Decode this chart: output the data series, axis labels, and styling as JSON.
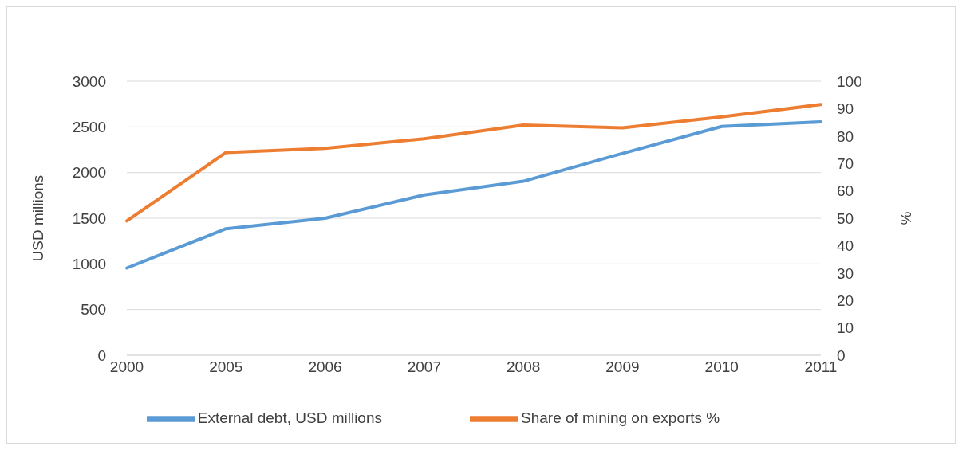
{
  "chart_data": {
    "type": "line",
    "categories": [
      "2000",
      "2005",
      "2006",
      "2007",
      "2008",
      "2009",
      "2010",
      "2011"
    ],
    "ylabel": "USD millions",
    "y2label": "%",
    "series": [
      {
        "name": "External debt, USD millions",
        "color": "#5b9bd5",
        "values": [
          955,
          1385,
          1500,
          1755,
          1905,
          2210,
          2505,
          2555
        ]
      },
      {
        "name": "Share of mining on exports %",
        "color": "#ed7d31",
        "axis": "y2",
        "values": [
          49,
          74,
          75.5,
          79,
          84,
          83,
          87,
          91.5
        ]
      }
    ],
    "ylim": [
      0,
      3000
    ],
    "yticks": [
      0,
      500,
      1000,
      1500,
      2000,
      2500,
      3000
    ],
    "y2lim": [
      0,
      100
    ],
    "y2ticks": [
      0,
      10,
      20,
      30,
      40,
      50,
      60,
      70,
      80,
      90,
      100
    ],
    "grid": "y",
    "legend": "bottom",
    "marker": "none",
    "line_style": "solid"
  }
}
